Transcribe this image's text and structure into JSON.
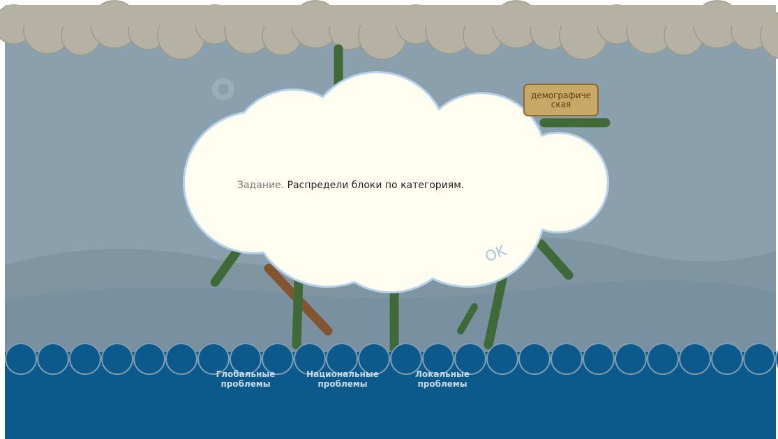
{
  "game": {
    "card": "демографическая",
    "dialog": {
      "label": "Задание.",
      "text": "Распредели блоки по категориям.",
      "button": "OK"
    },
    "categories": [
      "Глобальные проблемы",
      "Национальные проблемы",
      "Локальные проблемы"
    ]
  }
}
